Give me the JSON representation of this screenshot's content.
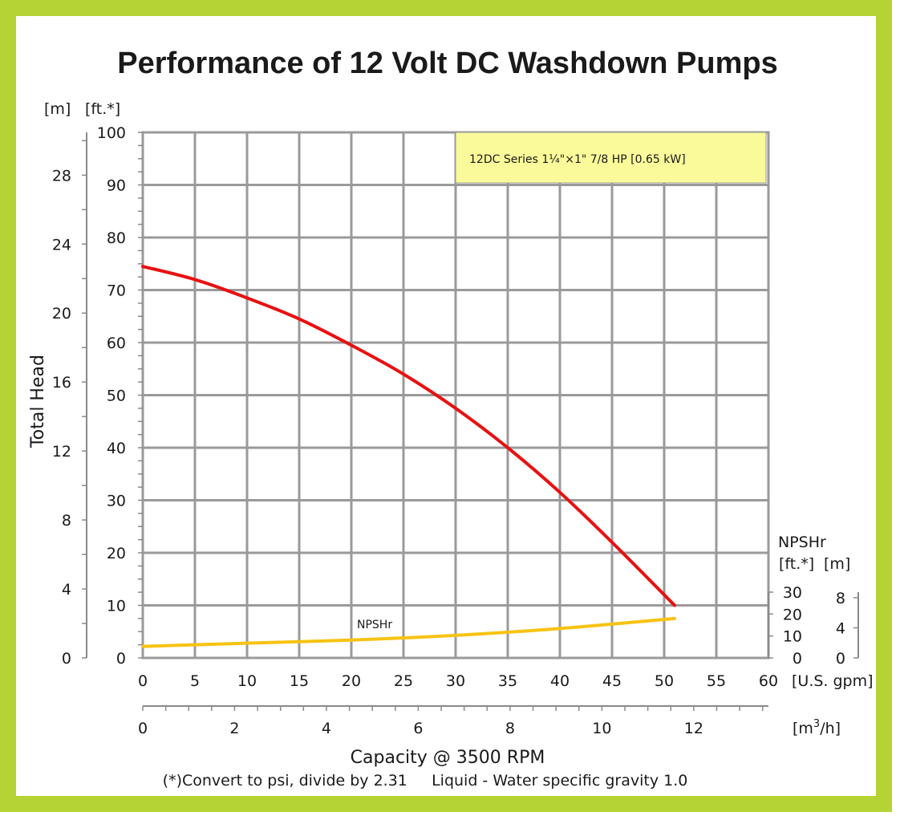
{
  "colors": {
    "border": "#b5d334",
    "grid": "#9a9a9a",
    "axis": "#8a8a8a",
    "head_curve": "#e81111",
    "npshr_curve": "#f7c313",
    "legend_bg": "#fafa9a"
  },
  "chart_data": {
    "type": "line",
    "title": "Performance of 12 Volt DC Washdown Pumps",
    "legend_box": "12DC Series 1¼\"×1\" 7/8 HP [0.65 kW]",
    "y_left_m_unit": "[m]",
    "y_left_ft_unit": "[ft.*]",
    "y_left_title": "Total Head",
    "y_left_ft_ticks": [
      "100",
      "90",
      "80",
      "70",
      "60",
      "50",
      "40",
      "30",
      "20",
      "10",
      "0"
    ],
    "y_left_m_ticks": [
      "28",
      "24",
      "20",
      "16",
      "12",
      "8",
      "4",
      "0"
    ],
    "y_right_title": "NPSHr",
    "y_right_ft_unit": "[ft.*]",
    "y_right_m_unit": "[m]",
    "y_right_ft_ticks": [
      "30",
      "20",
      "10",
      "0"
    ],
    "y_right_m_ticks": [
      "8",
      "4",
      "0"
    ],
    "x_gpm_ticks": [
      "0",
      "5",
      "10",
      "15",
      "20",
      "25",
      "30",
      "35",
      "40",
      "45",
      "50",
      "55",
      "60"
    ],
    "x_gpm_unit": "[U.S. gpm]",
    "x_m3h_ticks": [
      "0",
      "2",
      "4",
      "6",
      "8",
      "10",
      "12"
    ],
    "x_m3h_unit_pre": "[m",
    "x_m3h_unit_sup": "3",
    "x_m3h_unit_post": "/h]",
    "x_title": "Capacity @ 3500 RPM",
    "footnote": "(*)Convert to psi, divide by 2.31     Liquid - Water specific gravity 1.0",
    "xlim_gpm": [
      0,
      60
    ],
    "ylim_ft": [
      0,
      100
    ],
    "series": [
      {
        "name": "",
        "x": [
          0,
          5,
          10,
          15,
          20,
          25,
          30,
          35,
          40,
          45,
          51
        ],
        "y": [
          74.5,
          72,
          68.5,
          64.5,
          59.5,
          54,
          47.5,
          40,
          31.5,
          22,
          10
        ]
      },
      {
        "name": "NPSHr",
        "x": [
          0,
          10,
          20,
          30,
          40,
          51
        ],
        "y": [
          2.2,
          2.8,
          3.4,
          4.3,
          5.6,
          7.5
        ]
      }
    ]
  }
}
